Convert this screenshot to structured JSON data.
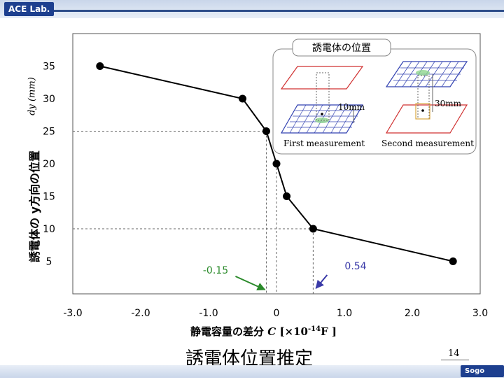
{
  "header": {
    "logo": "ACE Lab."
  },
  "footer": {
    "logo": "Sogo Univ.",
    "page": "14"
  },
  "slide_title": "誘電体位置推定",
  "axes": {
    "ylabel": "誘電体の y方向の位置",
    "ylabel_unit": "dy (mm)",
    "xlabel_prefix": "静電容量の差分",
    "xlabel_var": "C",
    "xlabel_unit": "[×10-14F ]"
  },
  "annotations": {
    "left_marker": "-0.15",
    "right_marker": "0.54"
  },
  "inset": {
    "title": "誘電体の位置",
    "first_caption": "First measurement",
    "second_caption": "Second measurement",
    "first_distance": "10mm",
    "second_distance": "30mm"
  },
  "chart_data": {
    "type": "line",
    "x": [
      -2.6,
      -0.5,
      -0.15,
      0.0,
      0.15,
      0.54,
      2.6
    ],
    "y": [
      35,
      30,
      25,
      20,
      15,
      10,
      5
    ],
    "xlim": [
      -3.0,
      3.0
    ],
    "ylim": [
      0,
      40
    ],
    "xticks": [
      "-3.0",
      "-2.0",
      "-1.0",
      "0",
      "1.0",
      "2.0",
      "3.0"
    ],
    "yticks": [
      "5",
      "10",
      "15",
      "20",
      "25",
      "30",
      "35"
    ],
    "marker_lines_x": [
      -0.15,
      0.54
    ],
    "grid": false,
    "line_color": "#000000",
    "arrow_left_color": "#2a8a2a",
    "arrow_right_color": "#3a3aa8",
    "annotation_left_color": "#2a8a2a",
    "annotation_right_color": "#3a3aa8"
  }
}
